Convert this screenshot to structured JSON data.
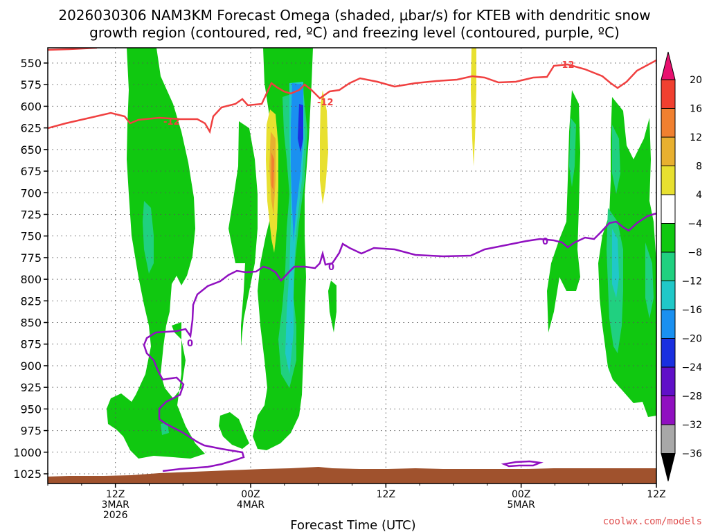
{
  "chart_data": {
    "type": "heatmap",
    "title_lines": [
      "2026030306 NAM3KM Forecast Omega (shaded, μbar/s) for KTEB with dendritic snow",
      "growth region (contoured, red, ºC) and freezing level (contoured, purple, ºC)"
    ],
    "xlabel": "Forecast Time (UTC)",
    "credit": "coolwx.com/models",
    "x_range_hours": [
      6,
      60
    ],
    "x_ticks": [
      {
        "hour": 12,
        "lines": [
          "12Z",
          "3MAR",
          "2026"
        ]
      },
      {
        "hour": 24,
        "lines": [
          "00Z",
          "4MAR"
        ]
      },
      {
        "hour": 36,
        "lines": [
          "12Z"
        ]
      },
      {
        "hour": 48,
        "lines": [
          "00Z",
          "5MAR"
        ]
      },
      {
        "hour": 60,
        "lines": [
          "12Z"
        ]
      }
    ],
    "y_range_hpa": [
      1035,
      530
    ],
    "y_ticks": [
      "550",
      "575",
      "600",
      "625",
      "650",
      "675",
      "700",
      "725",
      "750",
      "775",
      "800",
      "825",
      "850",
      "875",
      "900",
      "925",
      "950",
      "975",
      "1000",
      "1025"
    ],
    "grid": true,
    "colorbar": {
      "levels": [
        "20",
        "16",
        "12",
        "8",
        "4",
        "−4",
        "−8",
        "−12",
        "−16",
        "−20",
        "−24",
        "−28",
        "−32",
        "−36"
      ],
      "colors_top_to_bottom": [
        "#e8106f",
        "#f04030",
        "#f08030",
        "#e8b030",
        "#e8e030",
        "#ffffff",
        "#10c810",
        "#20d080",
        "#20c8c8",
        "#1a90f0",
        "#1a30e0",
        "#6010c8",
        "#9010c0",
        "#a8a8a8",
        "#000000"
      ]
    },
    "contours": [
      {
        "name": "dendritic -12C",
        "color": "#f04040",
        "label": "-12"
      },
      {
        "name": "freezing level 0C",
        "color": "#9010c0",
        "label": "0"
      }
    ],
    "terrain_color": "#a0522d"
  }
}
